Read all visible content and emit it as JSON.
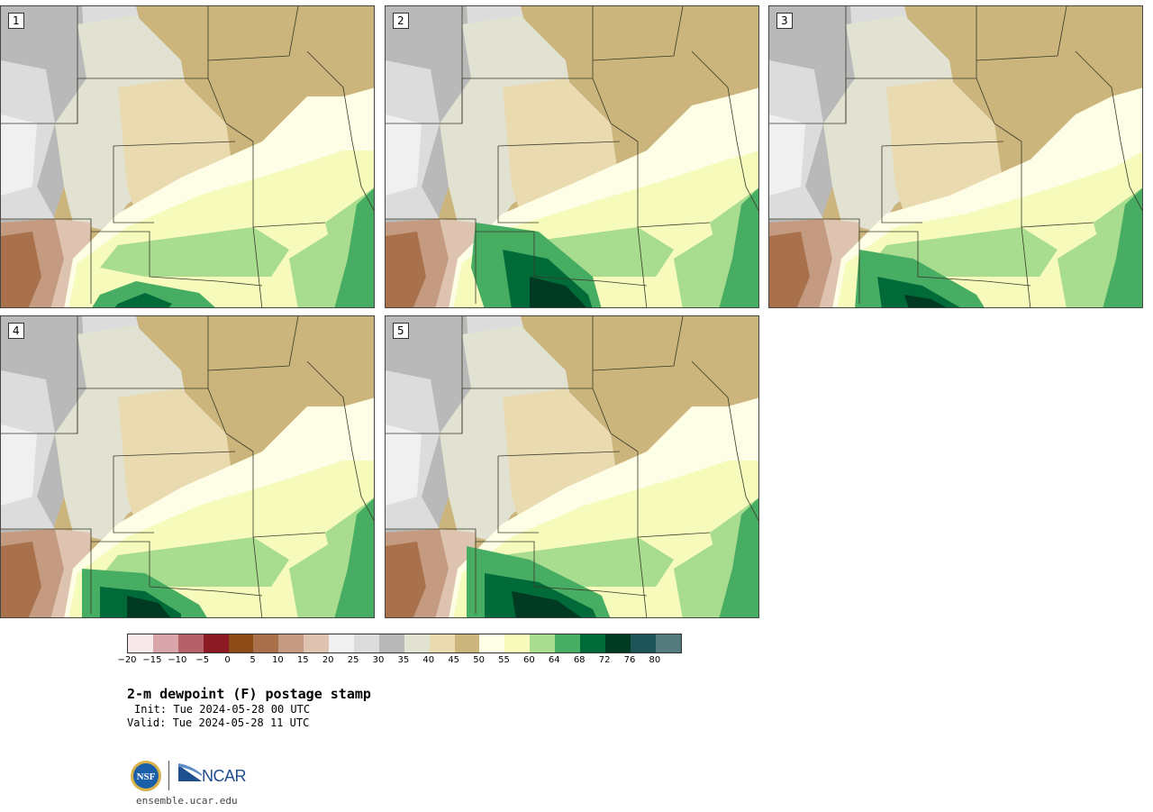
{
  "panels": [
    {
      "label": "1",
      "variant": 1
    },
    {
      "label": "2",
      "variant": 2
    },
    {
      "label": "3",
      "variant": 3
    },
    {
      "label": "4",
      "variant": 4
    },
    {
      "label": "5",
      "variant": 5
    }
  ],
  "colorbar": {
    "colors": [
      "#f7e9ea",
      "#d8a5aa",
      "#b5616a",
      "#8c1a24",
      "#8c4a16",
      "#a9714b",
      "#c49b80",
      "#dfc3b1",
      "#f0f0f0",
      "#dcdcdc",
      "#b9b9b9",
      "#e2e2d3",
      "#e9dab0",
      "#cbb57c",
      "#fefde6",
      "#f6fbbb",
      "#a8dc8f",
      "#47ad63",
      "#006b38",
      "#003a22",
      "#1d5458",
      "#537b7e"
    ],
    "ticks": [
      "−20",
      "−15",
      "−10",
      "−5",
      "0",
      "5",
      "10",
      "15",
      "20",
      "25",
      "30",
      "35",
      "40",
      "45",
      "50",
      "55",
      "60",
      "64",
      "68",
      "72",
      "76",
      "80"
    ]
  },
  "header": {
    "title": "2-m dewpoint (F) postage stamp",
    "init": "Init: Tue 2024-05-28 00 UTC",
    "valid": "Valid: Tue 2024-05-28 11 UTC"
  },
  "footer": {
    "logo_nsf": "NSF",
    "logo_ncar": "NCAR",
    "url": "ensemble.ucar.edu"
  }
}
